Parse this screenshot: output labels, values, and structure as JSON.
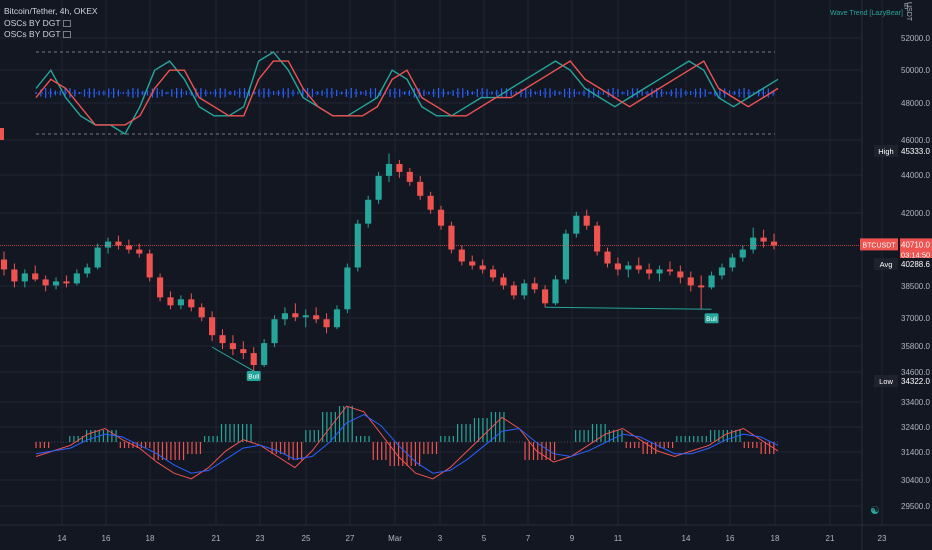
{
  "legend": {
    "title": "Bitcoin/Tether, 4h, OKEX",
    "ind1": "OSCs BY DGT",
    "ind2": "OSCs BY DGT"
  },
  "wave_label": "Wave Trend [LazyBear]",
  "currency": "USDT",
  "top_tick": "5",
  "settings_icon": "settings-icon",
  "colors": {
    "up": "#26a69a",
    "down": "#ef5350",
    "bg": "#131722",
    "grid": "#1f2433",
    "blue": "#2962ff"
  },
  "chart_data": {
    "type": "candlestick",
    "symbol": "BTCUSDT",
    "interval": "4h",
    "x_ticks": [
      "14",
      "16",
      "18",
      "21",
      "23",
      "25",
      "27",
      "Mar",
      "3",
      "5",
      "7",
      "9",
      "11",
      "14",
      "16",
      "18",
      "21",
      "23"
    ],
    "y_ticks": [
      "52000.0",
      "50000.0",
      "48000.0",
      "46000.0",
      "44000.0",
      "42000.0",
      "38500.0",
      "37000.0",
      "35800.0",
      "34600.0",
      "33400.0",
      "32400.0",
      "31400.0",
      "30400.0",
      "29500.0"
    ],
    "ylim": [
      29500,
      52000
    ],
    "price_labels": {
      "high": {
        "label": "High",
        "value": "45333.0",
        "y": 45333
      },
      "current": {
        "label": "BTCUSDT",
        "value": "40710.0",
        "countdown": "03:14:50",
        "y": 40710
      },
      "avg": {
        "label": "Avg",
        "value": "40288.6",
        "y": 40288.6
      },
      "low": {
        "label": "Low",
        "value": "34322.0",
        "y": 34322
      }
    },
    "annotations": [
      {
        "text": "Bull",
        "date_index": 24,
        "price": 34600
      },
      {
        "text": "Bull",
        "date_index": 68,
        "price": 37500
      }
    ],
    "candles": [
      [
        40000,
        40400,
        39200,
        39500
      ],
      [
        39500,
        39800,
        38600,
        38900
      ],
      [
        38900,
        39500,
        38600,
        39300
      ],
      [
        39300,
        39700,
        38900,
        39000
      ],
      [
        39000,
        39200,
        38400,
        38700
      ],
      [
        38700,
        39100,
        38500,
        38900
      ],
      [
        38900,
        39200,
        38600,
        38800
      ],
      [
        38800,
        39500,
        38700,
        39300
      ],
      [
        39300,
        39800,
        39100,
        39600
      ],
      [
        39600,
        40800,
        39500,
        40600
      ],
      [
        40600,
        41100,
        40300,
        40900
      ],
      [
        40900,
        41200,
        40500,
        40700
      ],
      [
        40700,
        41000,
        40300,
        40500
      ],
      [
        40500,
        40800,
        40100,
        40300
      ],
      [
        40300,
        40500,
        38900,
        39100
      ],
      [
        39100,
        39300,
        37900,
        38100
      ],
      [
        38100,
        38400,
        37500,
        37700
      ],
      [
        37700,
        38200,
        37500,
        38000
      ],
      [
        38000,
        38300,
        37400,
        37600
      ],
      [
        37600,
        37800,
        36900,
        37100
      ],
      [
        37100,
        37400,
        35900,
        36200
      ],
      [
        36200,
        36500,
        35500,
        35800
      ],
      [
        35800,
        36200,
        35200,
        35500
      ],
      [
        35500,
        35900,
        35000,
        35300
      ],
      [
        35300,
        35600,
        34322,
        34700
      ],
      [
        34700,
        36000,
        34600,
        35800
      ],
      [
        35800,
        37200,
        35600,
        37000
      ],
      [
        37000,
        37600,
        36700,
        37300
      ],
      [
        37300,
        37800,
        36900,
        37100
      ],
      [
        37100,
        37500,
        36600,
        37200
      ],
      [
        37200,
        37600,
        36800,
        37000
      ],
      [
        37000,
        37300,
        36300,
        36600
      ],
      [
        36600,
        37700,
        36500,
        37500
      ],
      [
        37500,
        39800,
        37300,
        39600
      ],
      [
        39600,
        42000,
        39400,
        41800
      ],
      [
        41800,
        43200,
        41600,
        43000
      ],
      [
        43000,
        44400,
        42800,
        44200
      ],
      [
        44200,
        45333,
        43900,
        44800
      ],
      [
        44800,
        45000,
        44100,
        44400
      ],
      [
        44400,
        44600,
        43700,
        43900
      ],
      [
        43900,
        44200,
        43000,
        43200
      ],
      [
        43200,
        43400,
        42300,
        42500
      ],
      [
        42500,
        42700,
        41500,
        41700
      ],
      [
        41700,
        41900,
        40300,
        40500
      ],
      [
        40500,
        40700,
        39700,
        39900
      ],
      [
        39900,
        40200,
        39500,
        39700
      ],
      [
        39700,
        40000,
        39300,
        39500
      ],
      [
        39500,
        39700,
        38900,
        39100
      ],
      [
        39100,
        39300,
        38500,
        38700
      ],
      [
        38700,
        38900,
        38000,
        38200
      ],
      [
        38200,
        39000,
        38000,
        38800
      ],
      [
        38800,
        39100,
        38300,
        38500
      ],
      [
        38500,
        38700,
        37600,
        37800
      ],
      [
        37800,
        39200,
        37700,
        39000
      ],
      [
        39000,
        41500,
        38800,
        41300
      ],
      [
        41300,
        42400,
        41100,
        42200
      ],
      [
        42200,
        42500,
        41500,
        41700
      ],
      [
        41700,
        41900,
        40200,
        40400
      ],
      [
        40400,
        40600,
        39600,
        39800
      ],
      [
        39800,
        40100,
        39200,
        39500
      ],
      [
        39500,
        39900,
        39100,
        39700
      ],
      [
        39700,
        40100,
        39300,
        39500
      ],
      [
        39500,
        39800,
        39000,
        39300
      ],
      [
        39300,
        39700,
        38900,
        39500
      ],
      [
        39500,
        39900,
        39200,
        39400
      ],
      [
        39400,
        39700,
        38800,
        39100
      ],
      [
        39100,
        39400,
        38400,
        38700
      ],
      [
        38700,
        39200,
        37500,
        38600
      ],
      [
        38600,
        39400,
        38500,
        39200
      ],
      [
        39200,
        39800,
        39000,
        39600
      ],
      [
        39600,
        40300,
        39400,
        40100
      ],
      [
        40100,
        40700,
        39900,
        40500
      ],
      [
        40500,
        41600,
        40300,
        41100
      ],
      [
        41100,
        41500,
        40600,
        40900
      ],
      [
        40900,
        41300,
        40500,
        40700
      ]
    ],
    "wave_trend": {
      "wt1": [
        49,
        51,
        48,
        46,
        45,
        45,
        44,
        47,
        51,
        52,
        50,
        47,
        46,
        46,
        47,
        52,
        53,
        51,
        48,
        47,
        46,
        46,
        47,
        48,
        51,
        50,
        47,
        46,
        46,
        47,
        48,
        48,
        49,
        50,
        51,
        52,
        51,
        49,
        48,
        47,
        48,
        49,
        50,
        51,
        52,
        51,
        48,
        47,
        48,
        49,
        50
      ],
      "wt2": [
        48,
        50,
        49,
        47,
        45,
        45,
        45,
        46,
        49,
        51,
        51,
        48,
        47,
        46,
        46,
        50,
        52,
        52,
        49,
        47,
        46,
        46,
        46,
        47,
        50,
        51,
        48,
        47,
        46,
        46,
        47,
        48,
        48,
        49,
        50,
        51,
        52,
        50,
        49,
        48,
        47,
        48,
        49,
        50,
        51,
        52,
        49,
        48,
        47,
        48,
        49
      ]
    },
    "oscillator": {
      "fast": [
        31.6,
        31.8,
        32.0,
        32.4,
        32.6,
        32.2,
        31.9,
        31.4,
        31.0,
        30.8,
        31.2,
        31.8,
        32.2,
        32.0,
        31.6,
        31.2,
        31.8,
        32.6,
        33.4,
        33.2,
        32.4,
        31.6,
        31.0,
        30.8,
        31.2,
        31.8,
        32.4,
        33.0,
        32.6,
        31.8,
        31.4,
        31.6,
        32.0,
        32.4,
        32.6,
        32.2,
        31.8,
        31.6,
        31.8,
        32.0,
        32.4,
        32.6,
        32.2,
        31.8
      ],
      "slow": [
        31.7,
        31.8,
        31.9,
        32.2,
        32.4,
        32.3,
        32.0,
        31.7,
        31.3,
        31.0,
        31.1,
        31.5,
        31.9,
        32.0,
        31.8,
        31.5,
        31.6,
        32.1,
        32.8,
        33.1,
        32.7,
        32.0,
        31.4,
        31.0,
        31.1,
        31.5,
        32.0,
        32.5,
        32.6,
        32.1,
        31.7,
        31.6,
        31.8,
        32.1,
        32.4,
        32.3,
        32.0,
        31.7,
        31.7,
        31.9,
        32.2,
        32.4,
        32.3,
        32.0
      ]
    }
  }
}
